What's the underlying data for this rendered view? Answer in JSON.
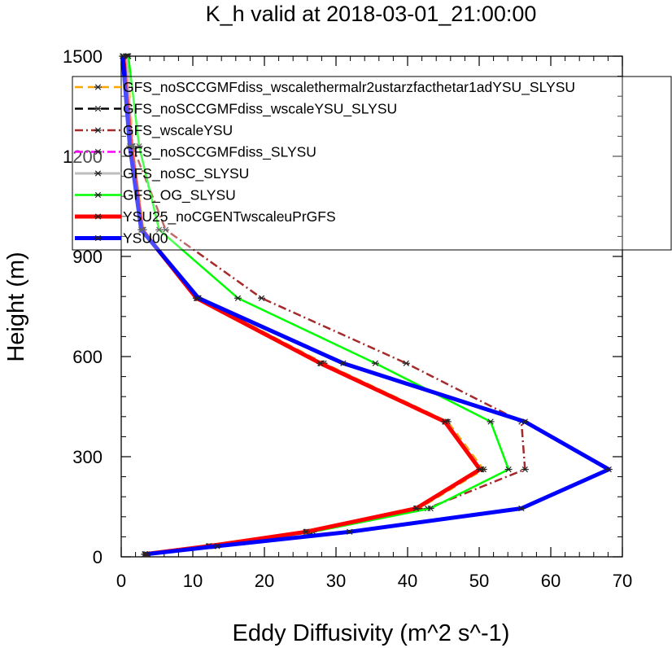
{
  "chart_data": {
    "type": "line",
    "title": "K_h valid at 2018-03-01_21:00:00",
    "xlabel": "Eddy Diffusivity (m^2 s^-1)",
    "ylabel": "Height (m)",
    "xlim": [
      0,
      70
    ],
    "ylim": [
      0,
      1500
    ],
    "xticks": [
      "0",
      "10",
      "20",
      "30",
      "40",
      "50",
      "60",
      "70"
    ],
    "yticks": [
      "0",
      "300",
      "600",
      "900",
      "1200",
      "1500"
    ],
    "legend_position": "top-right",
    "heights": [
      8,
      32,
      75,
      145,
      262,
      405,
      580,
      775,
      980,
      1230,
      1500
    ],
    "series": [
      {
        "name": "GFS_noSCCGMFdiss_wscalethermalr2ustarzfacthetar1adYSU_SLYSU",
        "color": "#FFA500",
        "dash": "dash",
        "width": 2.5,
        "values": [
          3.3,
          12.6,
          26.2,
          41.6,
          50.6,
          45.6,
          28.3,
          10.8,
          3.1,
          1.6,
          0.9
        ]
      },
      {
        "name": "GFS_noSCCGMFdiss_wscaleYSU_SLYSU",
        "color": "#000000",
        "dash": "dash",
        "width": 2.5,
        "values": [
          3.3,
          12.3,
          25.9,
          41.3,
          50.2,
          45.3,
          27.9,
          10.6,
          3.0,
          1.5,
          0.8
        ]
      },
      {
        "name": "GFS_wscaleYSU",
        "color": "#A52A2A",
        "dash": "dashdot",
        "width": 2.5,
        "values": [
          3.4,
          12.9,
          26.4,
          42.8,
          56.4,
          55.9,
          39.8,
          19.6,
          6.2,
          1.6,
          0.6
        ]
      },
      {
        "name": "GFS_noSCCGMFdiss_SLYSU",
        "color": "#FF00FF",
        "dash": "dashdot",
        "width": 2.5,
        "values": [
          3.3,
          12.4,
          26.0,
          41.4,
          50.3,
          45.4,
          28.0,
          10.7,
          3.0,
          1.5,
          0.8
        ]
      },
      {
        "name": "GFS_noSC_SLYSU",
        "color": "#BEBEBE",
        "dash": "solid",
        "width": 3,
        "values": [
          3.3,
          12.4,
          26.0,
          41.4,
          50.3,
          45.4,
          28.0,
          10.7,
          3.0,
          1.5,
          0.8
        ]
      },
      {
        "name": "GFS_OG_SLYSU",
        "color": "#00FF00",
        "dash": "solid",
        "width": 2.5,
        "values": [
          3.4,
          12.8,
          26.8,
          43.2,
          54.1,
          51.6,
          35.5,
          16.3,
          5.3,
          2.5,
          1.0
        ]
      },
      {
        "name": "YSU25_noCGENTwscaleuPrGFS",
        "color": "#FF0000",
        "dash": "solid",
        "width": 5,
        "values": [
          3.3,
          12.2,
          25.8,
          41.2,
          50.1,
          45.2,
          27.8,
          10.5,
          2.9,
          1.4,
          0.3
        ]
      },
      {
        "name": "YSU00",
        "color": "#0000FF",
        "dash": "solid",
        "width": 5,
        "values": [
          3.6,
          13.4,
          31.9,
          55.9,
          68.1,
          56.4,
          31.0,
          10.8,
          2.8,
          1.2,
          0.2
        ]
      }
    ]
  }
}
